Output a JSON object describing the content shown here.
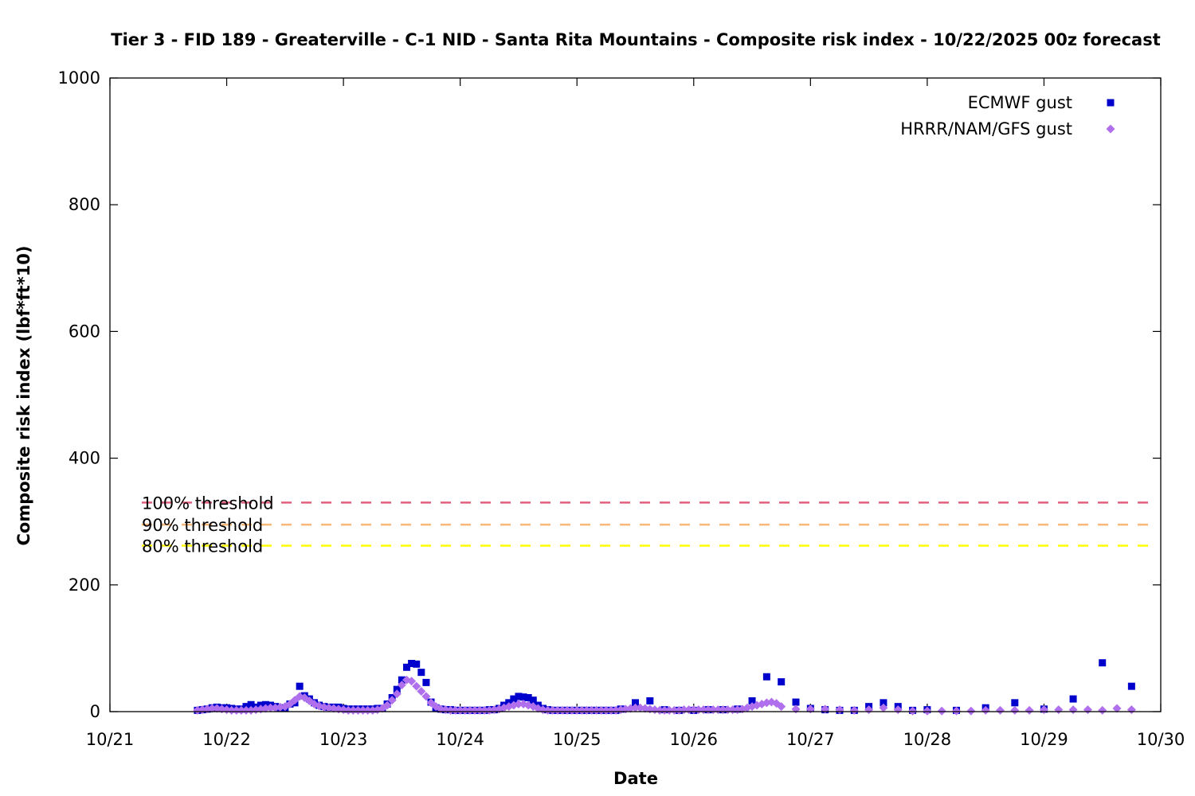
{
  "chart_data": {
    "type": "scatter",
    "title": "Tier 3 - FID 189 - Greaterville - C-1 NID - Santa Rita Mountains - Composite risk index - 10/22/2025 00z forecast",
    "xlabel": "Date",
    "ylabel": "Composite risk index (lbf*ft*10)",
    "x_range": [
      "10/21",
      "10/30"
    ],
    "ylim": [
      0,
      1000
    ],
    "x_ticks": [
      "10/21",
      "10/22",
      "10/23",
      "10/24",
      "10/25",
      "10/26",
      "10/27",
      "10/28",
      "10/29",
      "10/30"
    ],
    "y_ticks": [
      0,
      200,
      400,
      600,
      800,
      1000
    ],
    "grid": false,
    "legend": "top-right",
    "thresholds": [
      {
        "label": "100% threshold",
        "value": 330,
        "color": "#e0607e"
      },
      {
        "label": "90% threshold",
        "value": 295,
        "color": "#f8b878"
      },
      {
        "label": "80% threshold",
        "value": 262,
        "color": "#ffff00"
      }
    ],
    "series": [
      {
        "name": "ECMWF gust",
        "marker": "square",
        "color": "#0000cc",
        "points": [
          [
            "10/21 18:00",
            2
          ],
          [
            "10/21 19:00",
            3
          ],
          [
            "10/21 20:00",
            4
          ],
          [
            "10/21 21:00",
            6
          ],
          [
            "10/21 22:00",
            7
          ],
          [
            "10/21 23:00",
            6
          ],
          [
            "10/22 00:00",
            6
          ],
          [
            "10/22 01:00",
            5
          ],
          [
            "10/22 02:00",
            4
          ],
          [
            "10/22 03:00",
            4
          ],
          [
            "10/22 04:00",
            8
          ],
          [
            "10/22 05:00",
            11
          ],
          [
            "10/22 06:00",
            7
          ],
          [
            "10/22 07:00",
            10
          ],
          [
            "10/22 08:00",
            11
          ],
          [
            "10/22 09:00",
            10
          ],
          [
            "10/22 10:00",
            8
          ],
          [
            "10/22 11:00",
            6
          ],
          [
            "10/22 12:00",
            6
          ],
          [
            "10/22 13:00",
            12
          ],
          [
            "10/22 14:00",
            14
          ],
          [
            "10/22 15:00",
            40
          ],
          [
            "10/22 16:00",
            25
          ],
          [
            "10/22 17:00",
            20
          ],
          [
            "10/22 18:00",
            14
          ],
          [
            "10/22 19:00",
            10
          ],
          [
            "10/22 20:00",
            8
          ],
          [
            "10/22 21:00",
            7
          ],
          [
            "10/22 22:00",
            7
          ],
          [
            "10/22 23:00",
            7
          ],
          [
            "10/23 00:00",
            5
          ],
          [
            "10/23 01:00",
            4
          ],
          [
            "10/23 02:00",
            4
          ],
          [
            "10/23 03:00",
            4
          ],
          [
            "10/23 04:00",
            4
          ],
          [
            "10/23 05:00",
            4
          ],
          [
            "10/23 06:00",
            4
          ],
          [
            "10/23 07:00",
            5
          ],
          [
            "10/23 08:00",
            5
          ],
          [
            "10/23 09:00",
            12
          ],
          [
            "10/23 10:00",
            22
          ],
          [
            "10/23 11:00",
            35
          ],
          [
            "10/23 12:00",
            50
          ],
          [
            "10/23 13:00",
            70
          ],
          [
            "10/23 14:00",
            76
          ],
          [
            "10/23 15:00",
            75
          ],
          [
            "10/23 16:00",
            62
          ],
          [
            "10/23 17:00",
            46
          ],
          [
            "10/23 18:00",
            15
          ],
          [
            "10/23 19:00",
            6
          ],
          [
            "10/23 20:00",
            4
          ],
          [
            "10/23 21:00",
            3
          ],
          [
            "10/23 22:00",
            3
          ],
          [
            "10/23 23:00",
            2
          ],
          [
            "10/24 00:00",
            2
          ],
          [
            "10/24 01:00",
            2
          ],
          [
            "10/24 02:00",
            2
          ],
          [
            "10/24 03:00",
            2
          ],
          [
            "10/24 04:00",
            2
          ],
          [
            "10/24 05:00",
            2
          ],
          [
            "10/24 06:00",
            3
          ],
          [
            "10/24 07:00",
            3
          ],
          [
            "10/24 08:00",
            5
          ],
          [
            "10/24 09:00",
            10
          ],
          [
            "10/24 10:00",
            14
          ],
          [
            "10/24 11:00",
            20
          ],
          [
            "10/24 12:00",
            24
          ],
          [
            "10/24 13:00",
            23
          ],
          [
            "10/24 14:00",
            22
          ],
          [
            "10/24 15:00",
            18
          ],
          [
            "10/24 16:00",
            10
          ],
          [
            "10/24 17:00",
            5
          ],
          [
            "10/24 18:00",
            3
          ],
          [
            "10/24 19:00",
            2
          ],
          [
            "10/24 20:00",
            2
          ],
          [
            "10/24 21:00",
            2
          ],
          [
            "10/24 22:00",
            2
          ],
          [
            "10/24 23:00",
            2
          ],
          [
            "10/25 00:00",
            2
          ],
          [
            "10/25 01:00",
            2
          ],
          [
            "10/25 02:00",
            2
          ],
          [
            "10/25 03:00",
            2
          ],
          [
            "10/25 04:00",
            2
          ],
          [
            "10/25 05:00",
            2
          ],
          [
            "10/25 06:00",
            2
          ],
          [
            "10/25 07:00",
            2
          ],
          [
            "10/25 08:00",
            2
          ],
          [
            "10/25 09:00",
            4
          ],
          [
            "10/25 12:00",
            14
          ],
          [
            "10/25 15:00",
            17
          ],
          [
            "10/25 18:00",
            3
          ],
          [
            "10/25 21:00",
            2
          ],
          [
            "10/26 00:00",
            2
          ],
          [
            "10/26 03:00",
            3
          ],
          [
            "10/26 06:00",
            3
          ],
          [
            "10/26 09:00",
            4
          ],
          [
            "10/26 12:00",
            17
          ],
          [
            "10/26 15:00",
            55
          ],
          [
            "10/26 18:00",
            47
          ],
          [
            "10/26 21:00",
            15
          ],
          [
            "10/27 00:00",
            5
          ],
          [
            "10/27 03:00",
            3
          ],
          [
            "10/27 06:00",
            2
          ],
          [
            "10/27 09:00",
            2
          ],
          [
            "10/27 12:00",
            8
          ],
          [
            "10/27 15:00",
            14
          ],
          [
            "10/27 18:00",
            8
          ],
          [
            "10/27 21:00",
            2
          ],
          [
            "10/28 00:00",
            3
          ],
          [
            "10/28 06:00",
            2
          ],
          [
            "10/28 12:00",
            6
          ],
          [
            "10/28 18:00",
            14
          ],
          [
            "10/29 00:00",
            4
          ],
          [
            "10/29 06:00",
            20
          ],
          [
            "10/29 12:00",
            77
          ],
          [
            "10/29 18:00",
            40
          ]
        ]
      },
      {
        "name": "HRRR/NAM/GFS gust",
        "marker": "diamond",
        "color": "#b070ee",
        "points": [
          [
            "10/21 18:00",
            2
          ],
          [
            "10/21 19:00",
            3
          ],
          [
            "10/21 20:00",
            4
          ],
          [
            "10/21 21:00",
            5
          ],
          [
            "10/21 22:00",
            5
          ],
          [
            "10/21 23:00",
            4
          ],
          [
            "10/22 00:00",
            3
          ],
          [
            "10/22 01:00",
            2
          ],
          [
            "10/22 02:00",
            2
          ],
          [
            "10/22 03:00",
            2
          ],
          [
            "10/22 04:00",
            2
          ],
          [
            "10/22 05:00",
            2
          ],
          [
            "10/22 06:00",
            3
          ],
          [
            "10/22 07:00",
            4
          ],
          [
            "10/22 08:00",
            5
          ],
          [
            "10/22 09:00",
            6
          ],
          [
            "10/22 10:00",
            6
          ],
          [
            "10/22 11:00",
            7
          ],
          [
            "10/22 12:00",
            8
          ],
          [
            "10/22 13:00",
            12
          ],
          [
            "10/22 14:00",
            18
          ],
          [
            "10/22 15:00",
            24
          ],
          [
            "10/22 16:00",
            22
          ],
          [
            "10/22 17:00",
            17
          ],
          [
            "10/22 18:00",
            12
          ],
          [
            "10/22 19:00",
            9
          ],
          [
            "10/22 20:00",
            7
          ],
          [
            "10/22 21:00",
            6
          ],
          [
            "10/22 22:00",
            5
          ],
          [
            "10/22 23:00",
            4
          ],
          [
            "10/23 00:00",
            3
          ],
          [
            "10/23 01:00",
            2
          ],
          [
            "10/23 02:00",
            2
          ],
          [
            "10/23 03:00",
            2
          ],
          [
            "10/23 04:00",
            2
          ],
          [
            "10/23 05:00",
            2
          ],
          [
            "10/23 06:00",
            2
          ],
          [
            "10/23 07:00",
            3
          ],
          [
            "10/23 08:00",
            5
          ],
          [
            "10/23 09:00",
            10
          ],
          [
            "10/23 10:00",
            18
          ],
          [
            "10/23 11:00",
            28
          ],
          [
            "10/23 12:00",
            42
          ],
          [
            "10/23 13:00",
            50
          ],
          [
            "10/23 14:00",
            48
          ],
          [
            "10/23 15:00",
            40
          ],
          [
            "10/23 16:00",
            32
          ],
          [
            "10/23 17:00",
            24
          ],
          [
            "10/23 18:00",
            14
          ],
          [
            "10/23 19:00",
            8
          ],
          [
            "10/23 20:00",
            4
          ],
          [
            "10/23 21:00",
            3
          ],
          [
            "10/23 22:00",
            2
          ],
          [
            "10/23 23:00",
            2
          ],
          [
            "10/24 00:00",
            2
          ],
          [
            "10/24 01:00",
            2
          ],
          [
            "10/24 02:00",
            2
          ],
          [
            "10/24 03:00",
            2
          ],
          [
            "10/24 04:00",
            2
          ],
          [
            "10/24 05:00",
            2
          ],
          [
            "10/24 06:00",
            2
          ],
          [
            "10/24 07:00",
            3
          ],
          [
            "10/24 08:00",
            4
          ],
          [
            "10/24 09:00",
            6
          ],
          [
            "10/24 10:00",
            8
          ],
          [
            "10/24 11:00",
            10
          ],
          [
            "10/24 12:00",
            12
          ],
          [
            "10/24 13:00",
            12
          ],
          [
            "10/24 14:00",
            10
          ],
          [
            "10/24 15:00",
            8
          ],
          [
            "10/24 16:00",
            5
          ],
          [
            "10/24 17:00",
            3
          ],
          [
            "10/24 18:00",
            2
          ],
          [
            "10/24 19:00",
            2
          ],
          [
            "10/24 20:00",
            2
          ],
          [
            "10/24 21:00",
            2
          ],
          [
            "10/24 22:00",
            2
          ],
          [
            "10/24 23:00",
            2
          ],
          [
            "10/25 00:00",
            2
          ],
          [
            "10/25 01:00",
            2
          ],
          [
            "10/25 02:00",
            2
          ],
          [
            "10/25 03:00",
            2
          ],
          [
            "10/25 04:00",
            2
          ],
          [
            "10/25 05:00",
            2
          ],
          [
            "10/25 06:00",
            2
          ],
          [
            "10/25 07:00",
            2
          ],
          [
            "10/25 08:00",
            2
          ],
          [
            "10/25 09:00",
            3
          ],
          [
            "10/25 10:00",
            4
          ],
          [
            "10/25 11:00",
            5
          ],
          [
            "10/25 12:00",
            6
          ],
          [
            "10/25 13:00",
            6
          ],
          [
            "10/25 14:00",
            5
          ],
          [
            "10/25 15:00",
            4
          ],
          [
            "10/25 16:00",
            3
          ],
          [
            "10/25 17:00",
            2
          ],
          [
            "10/25 18:00",
            2
          ],
          [
            "10/25 19:00",
            2
          ],
          [
            "10/25 20:00",
            2
          ],
          [
            "10/25 21:00",
            2
          ],
          [
            "10/25 22:00",
            3
          ],
          [
            "10/25 23:00",
            3
          ],
          [
            "10/26 00:00",
            3
          ],
          [
            "10/26 01:00",
            3
          ],
          [
            "10/26 02:00",
            3
          ],
          [
            "10/26 03:00",
            3
          ],
          [
            "10/26 04:00",
            3
          ],
          [
            "10/26 05:00",
            3
          ],
          [
            "10/26 06:00",
            3
          ],
          [
            "10/26 07:00",
            3
          ],
          [
            "10/26 08:00",
            3
          ],
          [
            "10/26 09:00",
            3
          ],
          [
            "10/26 10:00",
            4
          ],
          [
            "10/26 11:00",
            6
          ],
          [
            "10/26 12:00",
            8
          ],
          [
            "10/26 13:00",
            10
          ],
          [
            "10/26 14:00",
            12
          ],
          [
            "10/26 15:00",
            14
          ],
          [
            "10/26 16:00",
            15
          ],
          [
            "10/26 17:00",
            13
          ],
          [
            "10/26 18:00",
            8
          ],
          [
            "10/26 21:00",
            4
          ],
          [
            "10/27 00:00",
            4
          ],
          [
            "10/27 03:00",
            4
          ],
          [
            "10/27 06:00",
            3
          ],
          [
            "10/27 09:00",
            2
          ],
          [
            "10/27 12:00",
            3
          ],
          [
            "10/27 15:00",
            6
          ],
          [
            "10/27 18:00",
            3
          ],
          [
            "10/27 21:00",
            1
          ],
          [
            "10/28 00:00",
            1
          ],
          [
            "10/28 03:00",
            1
          ],
          [
            "10/28 06:00",
            1
          ],
          [
            "10/28 09:00",
            1
          ],
          [
            "10/28 12:00",
            2
          ],
          [
            "10/28 15:00",
            2
          ],
          [
            "10/28 18:00",
            2
          ],
          [
            "10/28 21:00",
            2
          ],
          [
            "10/29 00:00",
            3
          ],
          [
            "10/29 03:00",
            3
          ],
          [
            "10/29 06:00",
            3
          ],
          [
            "10/29 09:00",
            3
          ],
          [
            "10/29 12:00",
            2
          ],
          [
            "10/29 15:00",
            5
          ],
          [
            "10/29 18:00",
            3
          ]
        ]
      }
    ]
  }
}
